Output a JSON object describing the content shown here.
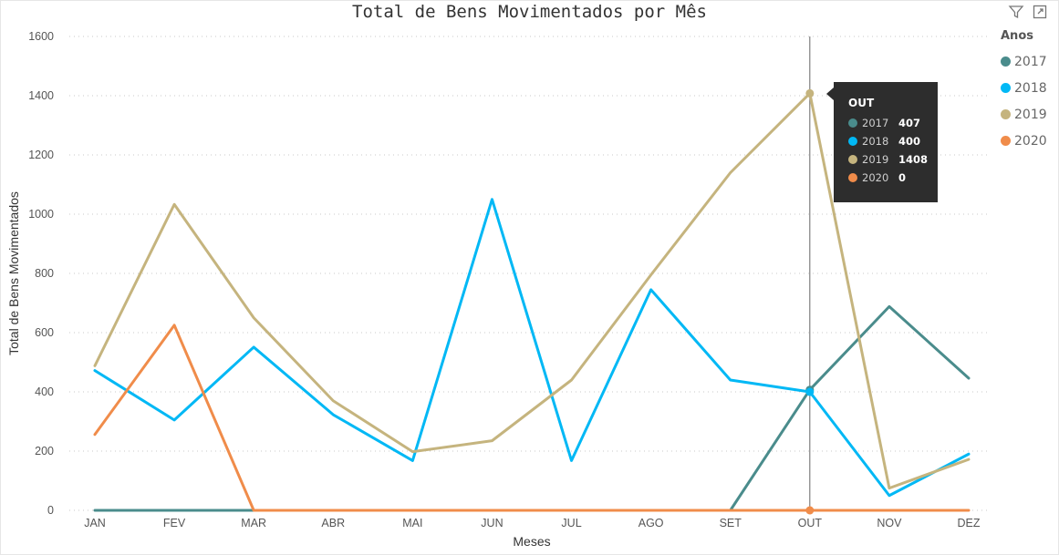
{
  "chart_data": {
    "type": "line",
    "title": "Total de Bens Movimentados por Mês",
    "xlabel": "Meses",
    "ylabel": "Total de Bens Movimentados",
    "categories": [
      "JAN",
      "FEV",
      "MAR",
      "ABR",
      "MAI",
      "JUN",
      "JUL",
      "AGO",
      "SET",
      "OUT",
      "NOV",
      "DEZ"
    ],
    "ylim": [
      0,
      1600
    ],
    "yticks": [
      0,
      200,
      400,
      600,
      800,
      1000,
      1200,
      1400,
      1600
    ],
    "ytick_labels": [
      "0",
      "200",
      "400",
      "600",
      "800",
      "1000",
      "1200",
      "1400",
      "1600"
    ],
    "grid": "horizontal dotted",
    "legend_title": "Anos",
    "legend_placement": "right",
    "series": [
      {
        "name": "2017",
        "color": "#4a8c8c",
        "values": [
          0,
          0,
          0,
          0,
          0,
          0,
          0,
          0,
          0,
          407,
          688,
          446
        ]
      },
      {
        "name": "2018",
        "color": "#01b8f5",
        "values": [
          472,
          305,
          551,
          323,
          168,
          1050,
          168,
          745,
          440,
          400,
          50,
          190
        ]
      },
      {
        "name": "2019",
        "color": "#c5b47e",
        "values": [
          488,
          1033,
          650,
          370,
          198,
          235,
          440,
          795,
          1140,
          1408,
          75,
          172
        ]
      },
      {
        "name": "2020",
        "color": "#f08c4a",
        "values": [
          256,
          625,
          0,
          0,
          0,
          0,
          0,
          0,
          0,
          0,
          0,
          0
        ]
      }
    ],
    "highlight": {
      "category": "OUT",
      "index": 9
    }
  },
  "tooltip": {
    "title": "OUT",
    "rows": [
      {
        "year": "2017",
        "value": "407",
        "color": "#4a8c8c"
      },
      {
        "year": "2018",
        "value": "400",
        "color": "#01b8f5"
      },
      {
        "year": "2019",
        "value": "1408",
        "color": "#c5b47e"
      },
      {
        "year": "2020",
        "value": "0",
        "color": "#f08c4a"
      }
    ]
  },
  "icons": {
    "filter": "filter-icon",
    "focus": "focus-mode-icon"
  }
}
